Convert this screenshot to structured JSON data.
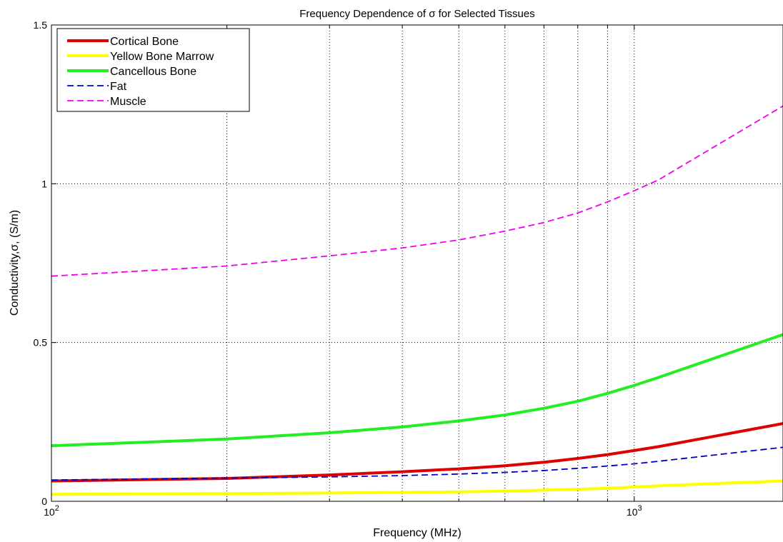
{
  "chart_data": {
    "type": "line",
    "title": "Frequency Dependence of σ for Selected Tissues",
    "xlabel": "Frequency (MHz)",
    "ylabel": "Conductivity,σ, (S/m)",
    "xscale": "log",
    "xlim": [
      100,
      1800
    ],
    "ylim": [
      0,
      1.5
    ],
    "x_ticks": [
      {
        "value": 100,
        "base": "10",
        "exp": "2"
      },
      {
        "value": 1000,
        "base": "10",
        "exp": "3"
      }
    ],
    "y_ticks": [
      {
        "value": 0,
        "label": "0"
      },
      {
        "value": 0.5,
        "label": "0.5"
      },
      {
        "value": 1,
        "label": "1"
      },
      {
        "value": 1.5,
        "label": "1.5"
      }
    ],
    "grid": true,
    "legend_position": "top-left",
    "x": [
      100,
      200,
      300,
      400,
      500,
      600,
      700,
      800,
      900,
      1000,
      1100,
      1800
    ],
    "series": [
      {
        "name": "Cortical Bone",
        "color": "#dd0000",
        "style": "solid",
        "width": 4,
        "values": [
          0.064,
          0.072,
          0.083,
          0.093,
          0.102,
          0.112,
          0.123,
          0.135,
          0.147,
          0.16,
          0.172,
          0.245
        ]
      },
      {
        "name": "Yellow Bone Marrow",
        "color": "#ffff00",
        "style": "solid",
        "width": 4,
        "values": [
          0.022,
          0.024,
          0.026,
          0.028,
          0.03,
          0.032,
          0.035,
          0.038,
          0.041,
          0.045,
          0.049,
          0.064
        ]
      },
      {
        "name": "Cancellous Bone",
        "color": "#22ee22",
        "style": "solid",
        "width": 4,
        "values": [
          0.175,
          0.196,
          0.216,
          0.234,
          0.253,
          0.272,
          0.293,
          0.315,
          0.34,
          0.365,
          0.39,
          0.525
        ]
      },
      {
        "name": "Fat",
        "color": "#0000cc",
        "style": "dashed",
        "width": 1.8,
        "values": [
          0.067,
          0.073,
          0.077,
          0.081,
          0.086,
          0.091,
          0.097,
          0.104,
          0.111,
          0.118,
          0.126,
          0.17
        ]
      },
      {
        "name": "Muscle",
        "color": "#ee00ee",
        "style": "dashed",
        "width": 1.8,
        "values": [
          0.709,
          0.741,
          0.773,
          0.798,
          0.823,
          0.851,
          0.878,
          0.908,
          0.943,
          0.978,
          1.012,
          1.245
        ]
      }
    ]
  }
}
